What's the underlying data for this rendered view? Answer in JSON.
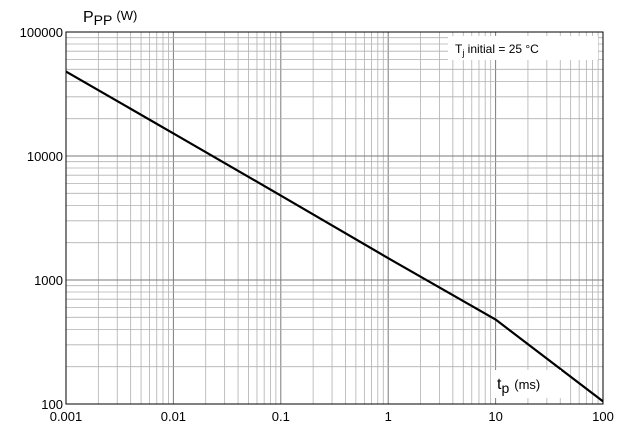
{
  "chart_data": {
    "type": "line",
    "x_scale": "log",
    "y_scale": "log",
    "xlim": [
      0.001,
      100
    ],
    "ylim": [
      100,
      100000
    ],
    "grid": true,
    "x_ticks": [
      "0.001",
      "0.01",
      "0.1",
      "1",
      "10",
      "100"
    ],
    "y_ticks": [
      "100",
      "1000",
      "10000",
      "100000"
    ],
    "y_title": {
      "main": "P",
      "sub": "PP",
      "unit": "(W)"
    },
    "x_title": {
      "main": "t",
      "sub": "p",
      "unit": "(ms)"
    },
    "annotation": {
      "main": "T",
      "sub": "j",
      "rest": " initial = 25 °C"
    },
    "series": [
      {
        "x": [
          0.001,
          0.01,
          0.1,
          1,
          10,
          100
        ],
        "y": [
          48000,
          15200,
          4800,
          1500,
          480,
          105
        ],
        "color": "#000000"
      }
    ]
  }
}
